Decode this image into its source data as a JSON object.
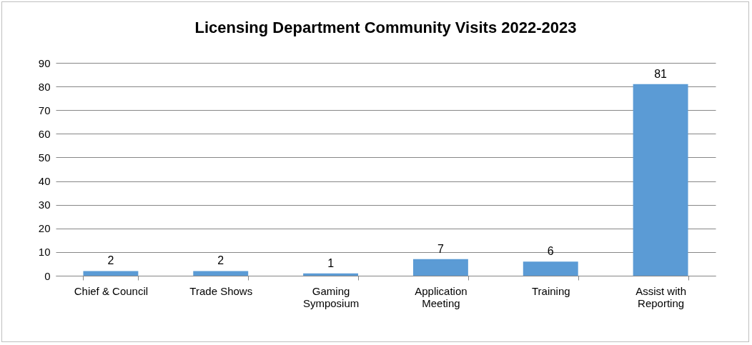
{
  "chart_data": {
    "type": "bar",
    "title": "Licensing Department Community Visits 2022-2023",
    "categories": [
      "Chief & Council",
      "Trade Shows",
      "Gaming Symposium",
      "Application Meeting",
      "Training",
      "Assist with Reporting"
    ],
    "values": [
      2,
      2,
      1,
      7,
      6,
      81
    ],
    "color": "#5b9bd5",
    "ylim": [
      0,
      90
    ],
    "yticks": [
      0,
      10,
      20,
      30,
      40,
      50,
      60,
      70,
      80,
      90
    ],
    "grid": "y",
    "data_labels": true
  }
}
